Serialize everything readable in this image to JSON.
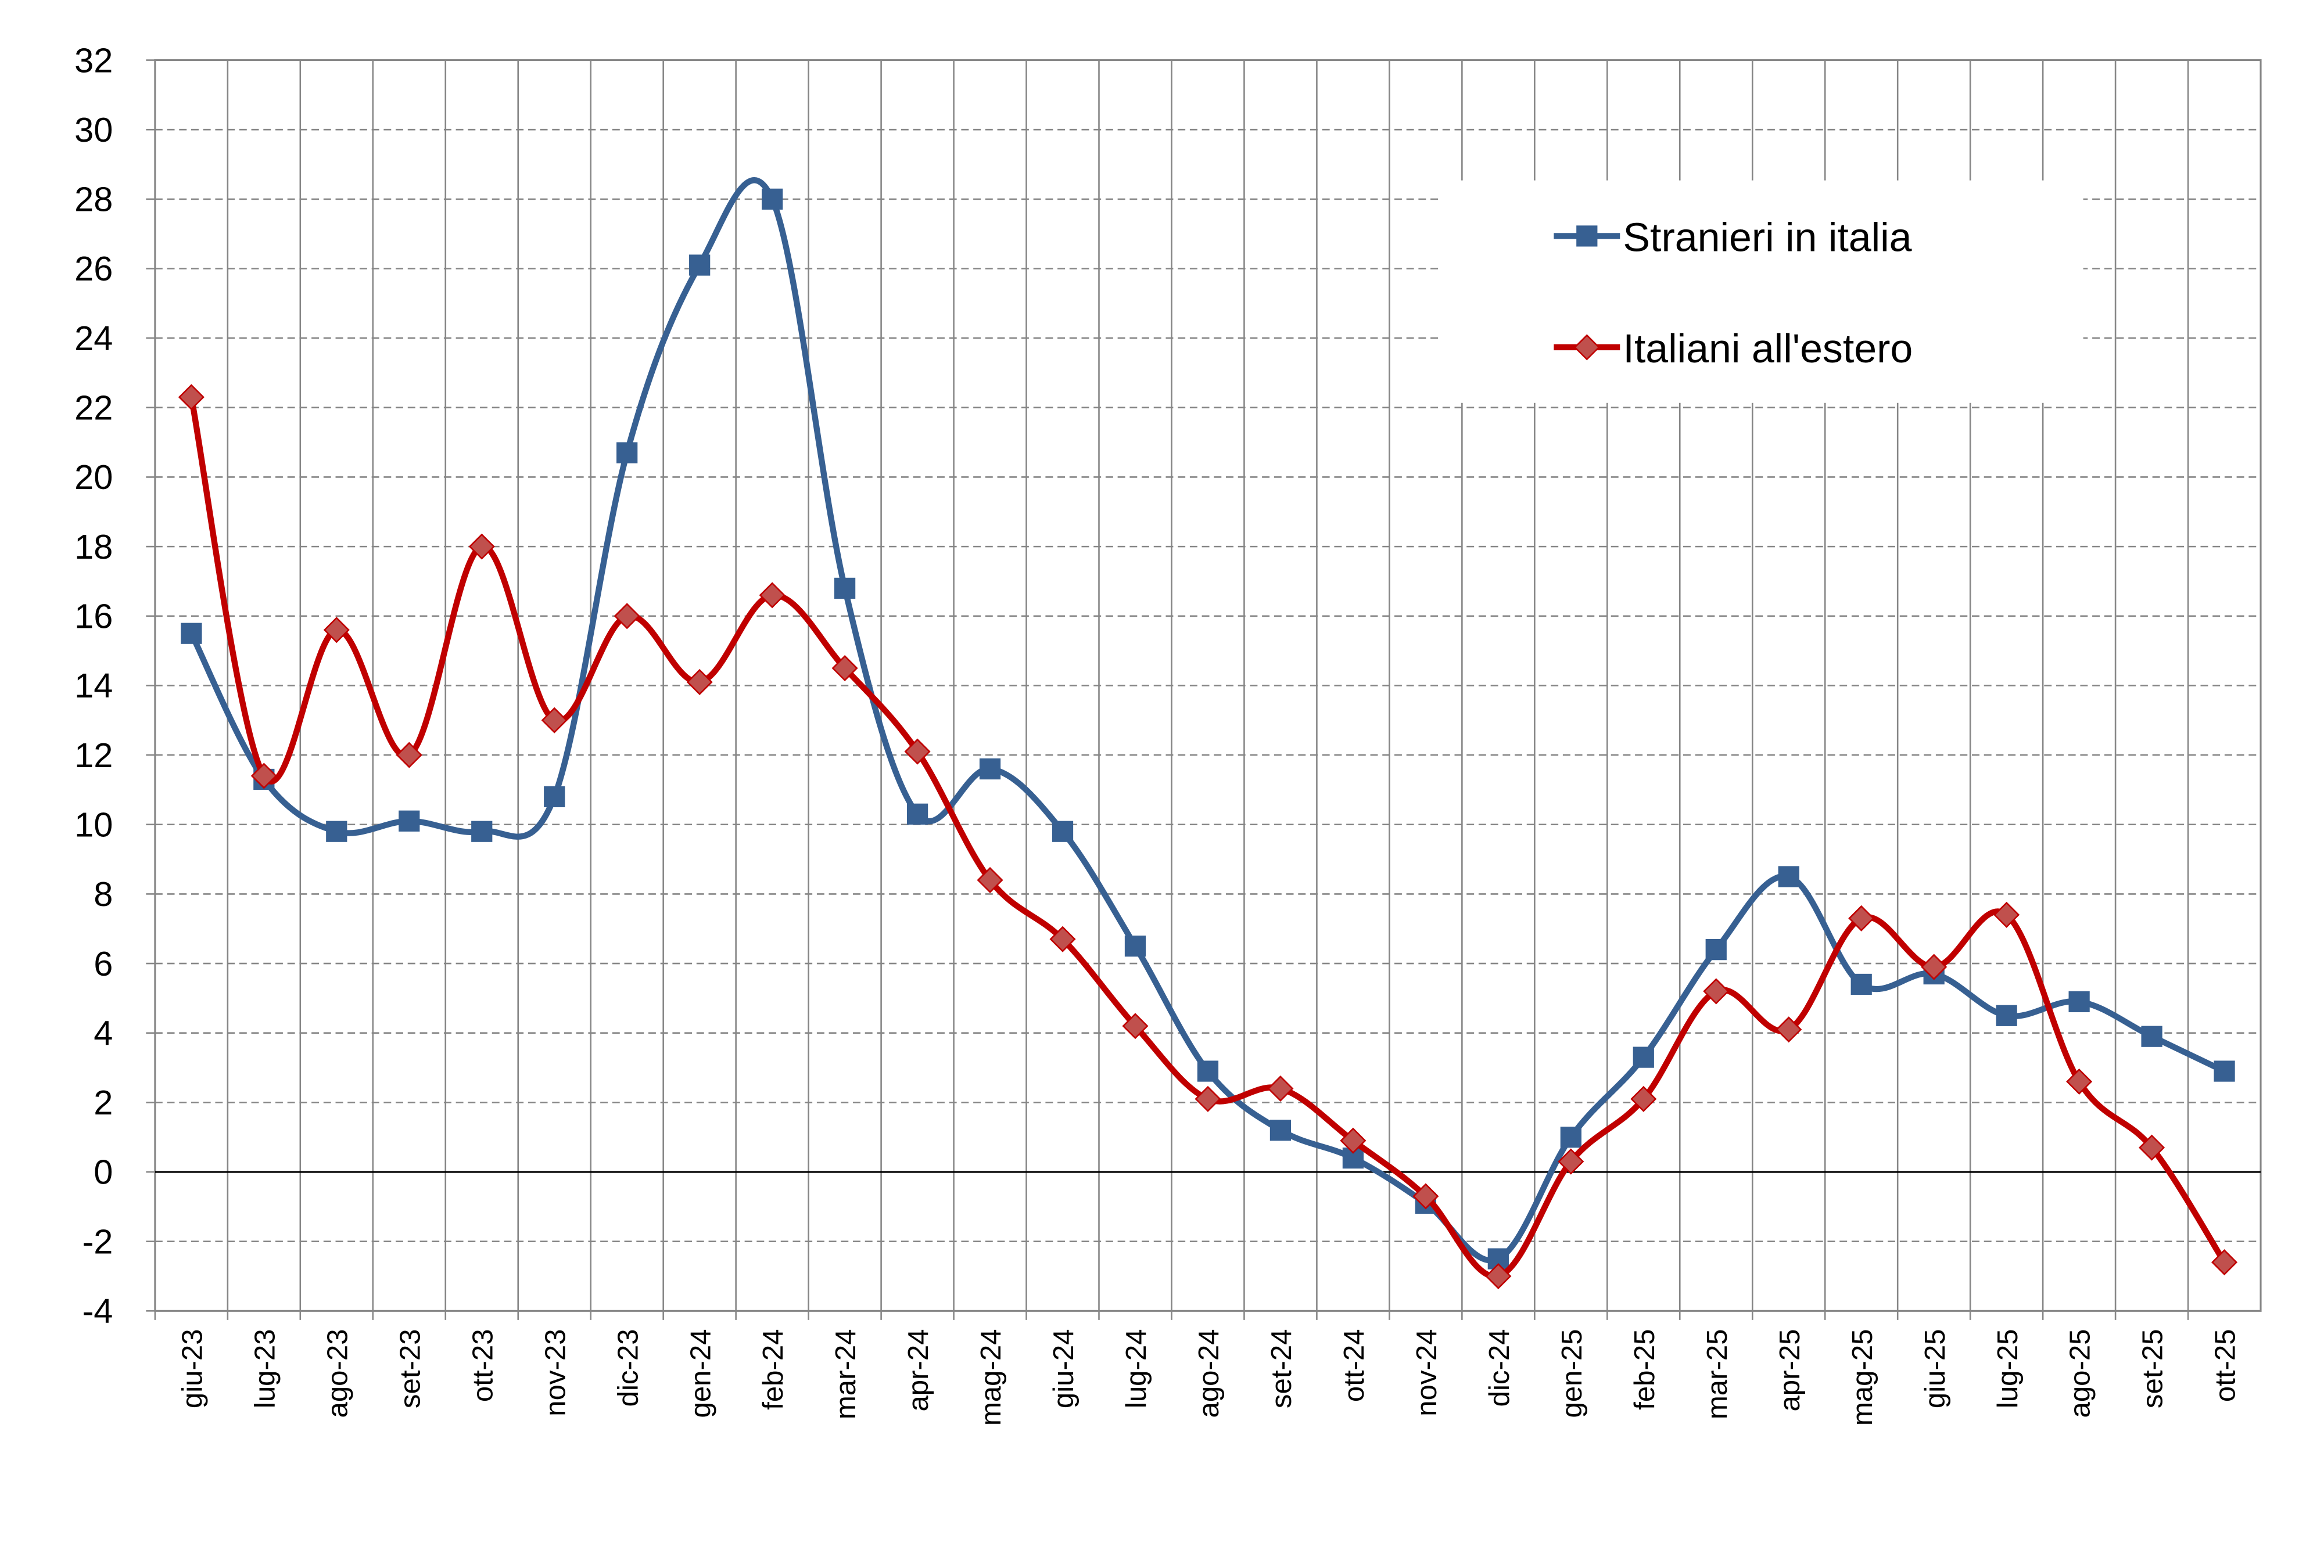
{
  "chart_data": {
    "type": "line",
    "title": "",
    "xlabel": "",
    "ylabel": "",
    "ylim": [
      -4,
      32
    ],
    "yticks": [
      -4,
      -2,
      0,
      2,
      4,
      6,
      8,
      10,
      12,
      14,
      16,
      18,
      20,
      22,
      24,
      26,
      28,
      30,
      32
    ],
    "grid": true,
    "legend_position": "top-right",
    "smoothed": true,
    "categories": [
      "giu-23",
      "lug-23",
      "ago-23",
      "set-23",
      "ott-23",
      "nov-23",
      "dic-23",
      "gen-24",
      "feb-24",
      "mar-24",
      "apr-24",
      "mag-24",
      "giu-24",
      "lug-24",
      "ago-24",
      "set-24",
      "ott-24",
      "nov-24",
      "dic-24",
      "gen-25",
      "feb-25",
      "mar-25",
      "apr-25",
      "mag-25",
      "giu-25",
      "lug-25",
      "ago-25",
      "set-25",
      "ott-25"
    ],
    "series": [
      {
        "name": "Stranieri in italia",
        "color": "#376092",
        "marker": "square",
        "values": [
          15.5,
          11.3,
          9.8,
          10.1,
          9.8,
          10.8,
          20.7,
          26.1,
          28.0,
          16.8,
          10.3,
          11.6,
          9.8,
          6.5,
          2.9,
          1.2,
          0.4,
          -0.9,
          -2.5,
          1.0,
          3.3,
          6.4,
          8.5,
          5.4,
          5.7,
          4.5,
          4.9,
          3.9,
          2.9
        ]
      },
      {
        "name": "Italiani all'estero",
        "color": "#C00000",
        "marker_fill": "#C0504D",
        "marker": "diamond",
        "values": [
          22.3,
          11.4,
          15.6,
          12.0,
          18.0,
          13.0,
          16.0,
          14.1,
          16.6,
          14.5,
          12.1,
          8.4,
          6.7,
          4.2,
          2.1,
          2.4,
          0.9,
          -0.7,
          -3.0,
          0.3,
          2.1,
          5.2,
          4.1,
          7.3,
          5.9,
          7.4,
          2.6,
          0.7,
          -2.6
        ]
      }
    ]
  }
}
